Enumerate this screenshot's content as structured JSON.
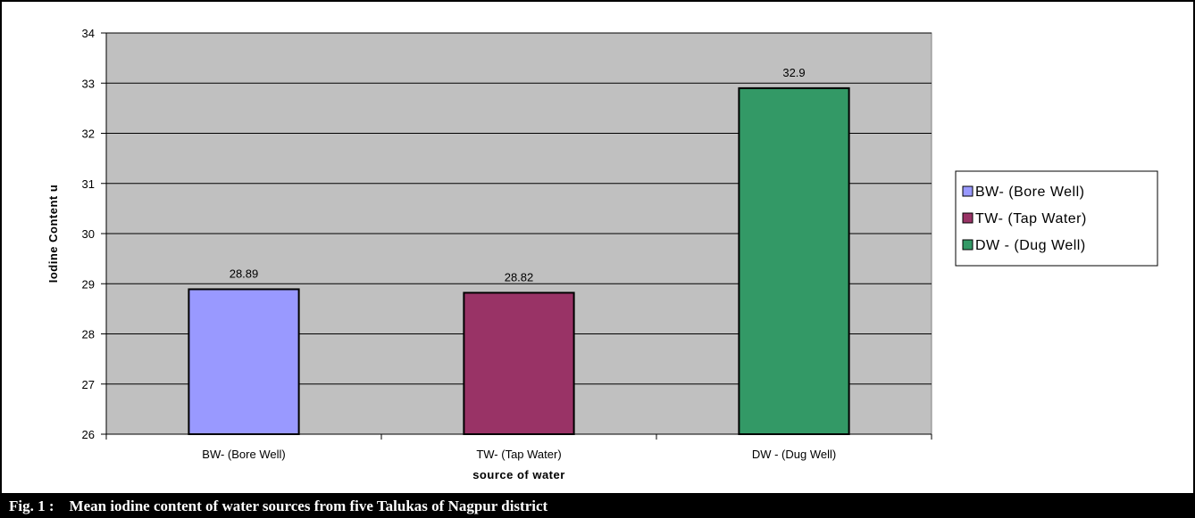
{
  "chart_data": {
    "type": "bar",
    "categories": [
      "BW- (Bore Well)",
      "TW- (Tap Water)",
      "DW - (Dug Well)"
    ],
    "values": [
      28.89,
      28.82,
      32.9
    ],
    "data_labels": [
      "28.89",
      "28.82",
      "32.9"
    ],
    "colors": [
      "#9999ff",
      "#993366",
      "#339966"
    ],
    "xlabel": "source of water",
    "ylabel": "Iodine Content u",
    "ylim": [
      26,
      34
    ],
    "yticks": [
      26,
      27,
      28,
      29,
      30,
      31,
      32,
      33,
      34
    ],
    "grid": true,
    "plot_background": "#c0c0c0",
    "legend": {
      "placement": "right",
      "entries": [
        "BW- (Bore Well)",
        "TW- (Tap Water)",
        "DW - (Dug Well)"
      ]
    }
  },
  "caption": {
    "label": "Fig. 1 :",
    "text": "Mean iodine content of water sources from five Talukas of Nagpur district"
  }
}
